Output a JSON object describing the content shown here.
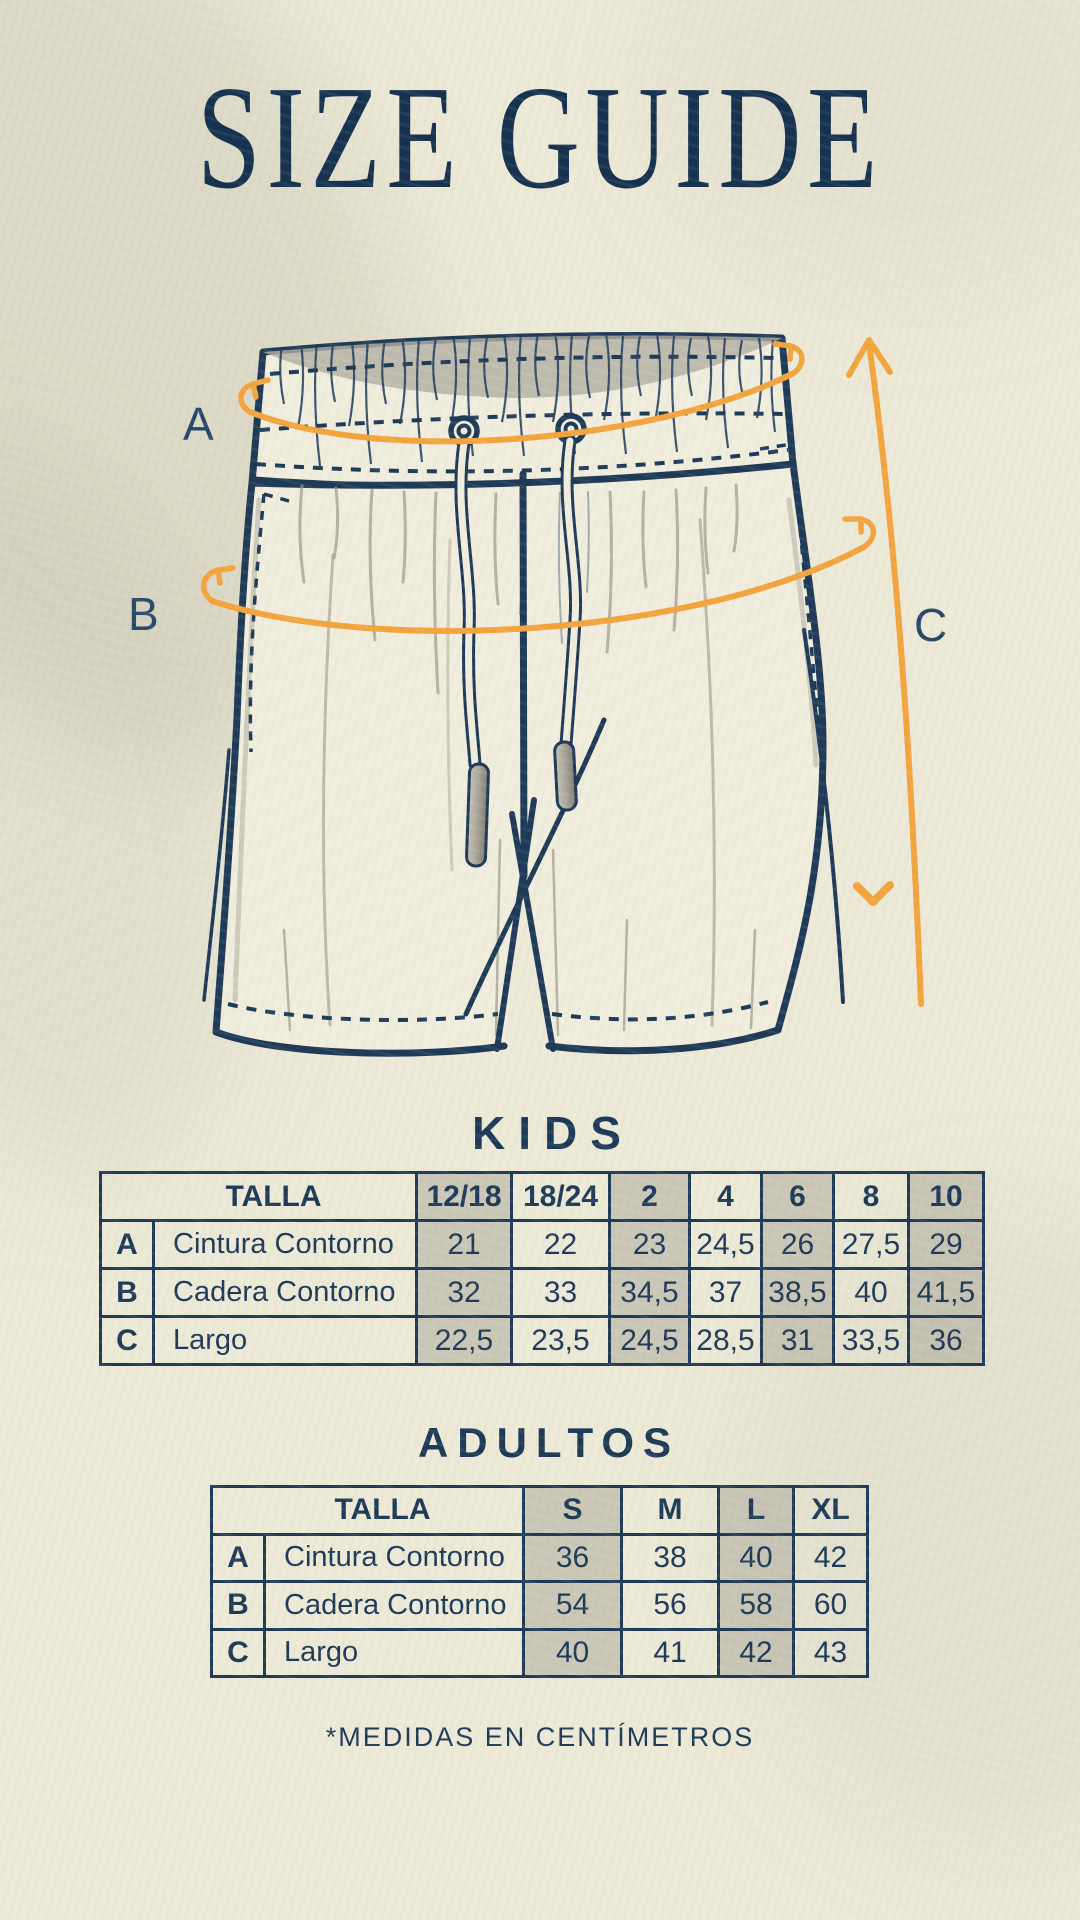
{
  "page": {
    "title": "SIZE GUIDE",
    "note": "*MEDIDAS EN CENTÍMETROS"
  },
  "colors": {
    "navy": "#1e3a57",
    "orange": "#f2a43d",
    "cream": "#ece9d7",
    "cell_shade": "#c8c5bb"
  },
  "diagram": {
    "description": "technical flat drawing of drawstring swim shorts with measurement arrows",
    "labels": {
      "a": "A",
      "b": "B",
      "c": "C"
    }
  },
  "tables": [
    {
      "id": "kids",
      "title": "KIDS",
      "header_label": "TALLA",
      "sizes": [
        "12/18",
        "18/24",
        "2",
        "4",
        "6",
        "8",
        "10"
      ],
      "rows": [
        {
          "letter": "A",
          "label": "Cintura Contorno",
          "values": [
            "21",
            "22",
            "23",
            "24,5",
            "26",
            "27,5",
            "29"
          ]
        },
        {
          "letter": "B",
          "label": "Cadera Contorno",
          "values": [
            "32",
            "33",
            "34,5",
            "37",
            "38,5",
            "40",
            "41,5"
          ]
        },
        {
          "letter": "C",
          "label": "Largo",
          "values": [
            "22,5",
            "23,5",
            "24,5",
            "28,5",
            "31",
            "33,5",
            "36"
          ]
        }
      ]
    },
    {
      "id": "adultos",
      "title": "ADULTOS",
      "header_label": "TALLA",
      "sizes": [
        "S",
        "M",
        "L",
        "XL"
      ],
      "rows": [
        {
          "letter": "A",
          "label": "Cintura Contorno",
          "values": [
            "36",
            "38",
            "40",
            "42"
          ]
        },
        {
          "letter": "B",
          "label": "Cadera Contorno",
          "values": [
            "54",
            "56",
            "58",
            "60"
          ]
        },
        {
          "letter": "C",
          "label": "Largo",
          "values": [
            "40",
            "41",
            "42",
            "43"
          ]
        }
      ]
    }
  ]
}
